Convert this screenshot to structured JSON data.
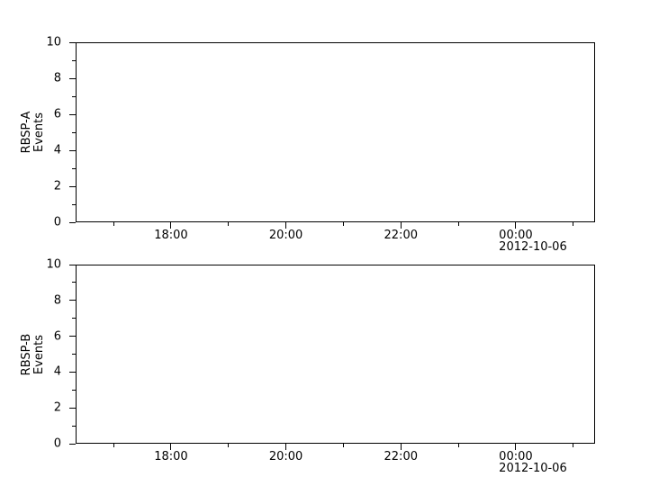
{
  "figure": {
    "title": "",
    "background_color": "#ffffff",
    "foreground_color": "#000000"
  },
  "chart_data": [
    {
      "type": "line",
      "panel": "RBSP-A",
      "title": "",
      "xlabel": "",
      "ylabel": "RBSP-A\nEvents",
      "ylim": [
        0,
        10
      ],
      "yticks_major": [
        0,
        2,
        4,
        6,
        8,
        10
      ],
      "yticks_minor": [
        1,
        3,
        5,
        7,
        9
      ],
      "x_axis": {
        "type": "time",
        "start_hour": 16.34,
        "end_hour": 25.38,
        "major_ticks": [
          {
            "hour": 18,
            "label": "18:00"
          },
          {
            "hour": 20,
            "label": "20:00"
          },
          {
            "hour": 22,
            "label": "22:00"
          },
          {
            "hour": 24,
            "label": "00:00",
            "date_line": "2012-10-06"
          }
        ],
        "minor_tick_hours": [
          17,
          19,
          21,
          23,
          25
        ]
      },
      "series": [],
      "grid": false,
      "legend": null
    },
    {
      "type": "line",
      "panel": "RBSP-B",
      "title": "",
      "xlabel": "",
      "ylabel": "RBSP-B\nEvents",
      "ylim": [
        0,
        10
      ],
      "yticks_major": [
        0,
        2,
        4,
        6,
        8,
        10
      ],
      "yticks_minor": [
        1,
        3,
        5,
        7,
        9
      ],
      "x_axis": {
        "type": "time",
        "start_hour": 16.34,
        "end_hour": 25.38,
        "major_ticks": [
          {
            "hour": 18,
            "label": "18:00"
          },
          {
            "hour": 20,
            "label": "20:00"
          },
          {
            "hour": 22,
            "label": "22:00"
          },
          {
            "hour": 24,
            "label": "00:00",
            "date_line": "2012-10-06"
          }
        ],
        "minor_tick_hours": [
          17,
          19,
          21,
          23,
          25
        ]
      },
      "series": [],
      "grid": false,
      "legend": null
    }
  ]
}
